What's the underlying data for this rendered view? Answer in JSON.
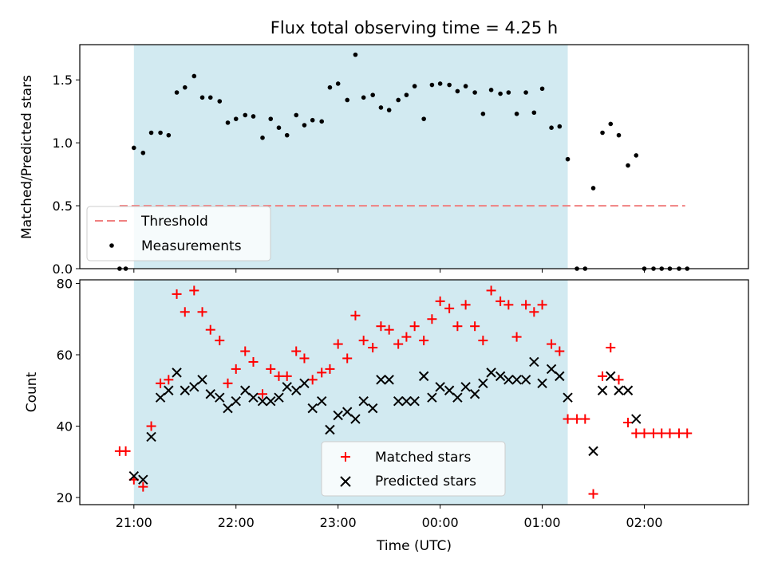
{
  "chart_data": [
    {
      "type": "scatter",
      "title": "Flux total observing time = 4.25 h",
      "ylabel": "Matched/Predicted stars",
      "xlabel": "",
      "ylim": [
        0,
        1.78
      ],
      "yticks": [
        0.0,
        0.5,
        1.0,
        1.5
      ],
      "ytick_labels": [
        "0.0",
        "0.5",
        "1.0",
        "1.5"
      ],
      "shaded_region": {
        "x_start_h": 21.0,
        "x_end_h": 25.25,
        "color": "#add8e6"
      },
      "threshold": {
        "name": "Threshold",
        "value": 0.5,
        "x_range_h": [
          20.86,
          26.4
        ],
        "color": "#f08080"
      },
      "legend": {
        "position": "lower left",
        "entries": [
          "Threshold",
          "Measurements"
        ]
      },
      "series": [
        {
          "name": "Measurements",
          "color": "#000000",
          "x_h": [
            20.86,
            20.92,
            21.0,
            21.09,
            21.17,
            21.26,
            21.34,
            21.42,
            21.5,
            21.59,
            21.67,
            21.75,
            21.84,
            21.92,
            22.0,
            22.09,
            22.17,
            22.26,
            22.34,
            22.42,
            22.5,
            22.59,
            22.67,
            22.75,
            22.84,
            22.92,
            23.0,
            23.09,
            23.17,
            23.25,
            23.34,
            23.42,
            23.5,
            23.59,
            23.67,
            23.75,
            23.84,
            23.92,
            24.0,
            24.09,
            24.17,
            24.25,
            24.34,
            24.42,
            24.5,
            24.59,
            24.67,
            24.75,
            24.84,
            24.92,
            25.0,
            25.09,
            25.17,
            25.25,
            25.34,
            25.42,
            25.5,
            25.59,
            25.67,
            25.75,
            25.84,
            25.92,
            26.0,
            26.09,
            26.17,
            26.25,
            26.34,
            26.42
          ],
          "y": [
            0.0,
            0.0,
            0.96,
            0.92,
            1.08,
            1.08,
            1.06,
            1.4,
            1.44,
            1.53,
            1.36,
            1.36,
            1.33,
            1.16,
            1.19,
            1.22,
            1.21,
            1.04,
            1.19,
            1.12,
            1.06,
            1.22,
            1.14,
            1.18,
            1.17,
            1.44,
            1.47,
            1.34,
            1.7,
            1.36,
            1.38,
            1.28,
            1.26,
            1.34,
            1.38,
            1.45,
            1.19,
            1.46,
            1.47,
            1.46,
            1.41,
            1.45,
            1.4,
            1.23,
            1.42,
            1.39,
            1.4,
            1.23,
            1.4,
            1.24,
            1.43,
            1.12,
            1.13,
            0.87,
            0.0,
            0.0,
            0.64,
            1.08,
            1.15,
            1.06,
            0.82,
            0.9,
            0.0,
            0.0,
            0.0,
            0.0,
            0.0,
            0.0
          ]
        }
      ]
    },
    {
      "type": "scatter",
      "title": "",
      "xlabel": "Time (UTC)",
      "ylabel": "Count",
      "xlim_h": [
        20.47,
        27.02
      ],
      "ylim": [
        18,
        81
      ],
      "xticks_h": [
        21,
        22,
        23,
        24,
        25,
        26
      ],
      "xtick_labels": [
        "21:00",
        "22:00",
        "23:00",
        "00:00",
        "01:00",
        "02:00"
      ],
      "yticks": [
        20,
        40,
        60,
        80
      ],
      "ytick_labels": [
        "20",
        "40",
        "60",
        "80"
      ],
      "shaded_region": {
        "x_start_h": 21.0,
        "x_end_h": 25.25,
        "color": "#add8e6"
      },
      "legend": {
        "position": "lower center",
        "entries": [
          "Matched stars",
          "Predicted stars"
        ]
      },
      "series": [
        {
          "name": "Matched stars",
          "marker": "+",
          "color": "#ff0000",
          "x_h": [
            20.86,
            20.92,
            21.0,
            21.09,
            21.17,
            21.26,
            21.34,
            21.42,
            21.5,
            21.59,
            21.67,
            21.75,
            21.84,
            21.92,
            22.0,
            22.09,
            22.17,
            22.26,
            22.34,
            22.42,
            22.5,
            22.59,
            22.67,
            22.75,
            22.84,
            22.92,
            23.0,
            23.09,
            23.17,
            23.25,
            23.34,
            23.42,
            23.5,
            23.59,
            23.67,
            23.75,
            23.84,
            23.92,
            24.0,
            24.09,
            24.17,
            24.25,
            24.34,
            24.42,
            24.5,
            24.59,
            24.67,
            24.75,
            24.84,
            24.92,
            25.0,
            25.09,
            25.17,
            25.25,
            25.34,
            25.42,
            25.5,
            25.59,
            25.67,
            25.75,
            25.84,
            25.92,
            26.0,
            26.09,
            26.17,
            26.25,
            26.34,
            26.42
          ],
          "y": [
            33,
            33,
            25,
            23,
            40,
            52,
            53,
            77,
            72,
            78,
            72,
            67,
            64,
            52,
            56,
            61,
            58,
            49,
            56,
            54,
            54,
            61,
            59,
            53,
            55,
            56,
            63,
            59,
            71,
            64,
            62,
            68,
            67,
            63,
            65,
            68,
            64,
            70,
            75,
            73,
            68,
            74,
            68,
            64,
            78,
            75,
            74,
            65,
            74,
            72,
            74,
            63,
            61,
            42,
            42,
            42,
            21,
            54,
            62,
            53,
            41,
            38,
            38,
            38,
            38,
            38,
            38,
            38
          ]
        },
        {
          "name": "Predicted stars",
          "marker": "x",
          "color": "#000000",
          "x_h": [
            21.0,
            21.09,
            21.17,
            21.26,
            21.34,
            21.42,
            21.5,
            21.59,
            21.67,
            21.75,
            21.84,
            21.92,
            22.0,
            22.09,
            22.17,
            22.26,
            22.34,
            22.42,
            22.5,
            22.59,
            22.67,
            22.75,
            22.84,
            22.92,
            23.0,
            23.09,
            23.17,
            23.25,
            23.34,
            23.42,
            23.5,
            23.59,
            23.67,
            23.75,
            23.84,
            23.92,
            24.0,
            24.09,
            24.17,
            24.25,
            24.34,
            24.42,
            24.5,
            24.59,
            24.67,
            24.75,
            24.84,
            24.92,
            25.0,
            25.09,
            25.17,
            25.25,
            25.5,
            25.59,
            25.67,
            25.75,
            25.84,
            25.92
          ],
          "y": [
            26,
            25,
            37,
            48,
            50,
            55,
            50,
            51,
            53,
            49,
            48,
            45,
            47,
            50,
            48,
            47,
            47,
            48,
            51,
            50,
            52,
            45,
            47,
            39,
            43,
            44,
            42,
            47,
            45,
            53,
            53,
            47,
            47,
            47,
            54,
            48,
            51,
            50,
            48,
            51,
            49,
            52,
            55,
            54,
            53,
            53,
            53,
            58,
            52,
            56,
            54,
            48,
            33,
            50,
            54,
            50,
            50,
            42
          ]
        }
      ]
    }
  ]
}
